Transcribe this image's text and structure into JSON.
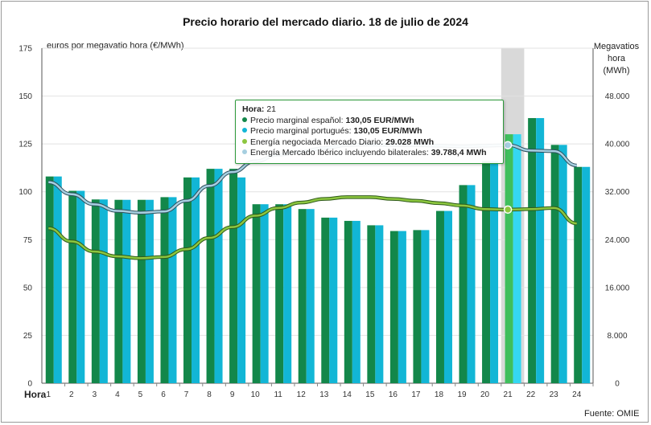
{
  "chart_data": {
    "type": "bar",
    "title": "Precio horario del mercado diario. 18 de julio de 2024",
    "x_axis_label": "Hora",
    "left_axis_label": "euros por megavatio hora (€/MWh)",
    "right_axis_label_lines": [
      "Megavatios",
      "hora",
      "(MWh)"
    ],
    "source": "Fuente: OMIE",
    "categories": [
      "1",
      "2",
      "3",
      "4",
      "5",
      "6",
      "7",
      "8",
      "9",
      "10",
      "11",
      "12",
      "13",
      "14",
      "15",
      "16",
      "17",
      "18",
      "19",
      "20",
      "21",
      "22",
      "23",
      "24"
    ],
    "ylim_left": [
      0,
      175
    ],
    "yticks_left": [
      "0",
      "25",
      "50",
      "75",
      "100",
      "125",
      "150",
      "175"
    ],
    "ylim_right": [
      0,
      56000
    ],
    "yticks_right": [
      "0",
      "8.000",
      "16.000",
      "24.000",
      "32.000",
      "40.000",
      "48.000"
    ],
    "highlighted_hour": "21",
    "series": [
      {
        "name": "Precio marginal español",
        "type": "bar",
        "axis": "left",
        "color": "#13874a",
        "values": [
          108,
          100.5,
          96,
          95.8,
          95.8,
          97.2,
          107.5,
          112,
          112,
          93.5,
          93.5,
          91,
          86.5,
          84.8,
          82.5,
          79.5,
          80,
          90,
          103.5,
          116,
          130.05,
          138.5,
          124.5,
          113
        ]
      },
      {
        "name": "Precio marginal portugués",
        "type": "bar",
        "axis": "left",
        "color": "#12b6d6",
        "values": [
          108,
          100.5,
          96,
          95.8,
          95.8,
          97.2,
          107.5,
          112,
          107.5,
          93.5,
          93.5,
          91,
          86.5,
          84.8,
          82.5,
          79.5,
          80,
          90,
          103.5,
          116,
          130.05,
          138.5,
          124.5,
          113
        ]
      },
      {
        "name": "Energía negociada Mercado Diario",
        "type": "line",
        "axis": "right",
        "color": "#8cc63f",
        "values": [
          25900,
          23700,
          22000,
          21200,
          20900,
          21100,
          22400,
          24300,
          26100,
          28000,
          29300,
          30200,
          30800,
          31100,
          31100,
          30800,
          30500,
          30100,
          29700,
          29100,
          29028,
          29100,
          29300,
          26700
        ]
      },
      {
        "name": "Energía Mercado Ibérico incluyendo bilaterales",
        "type": "line",
        "axis": "right",
        "color": "#a6cfe0",
        "values": [
          33600,
          31600,
          29900,
          28800,
          28500,
          28700,
          30500,
          33000,
          35300,
          37100,
          38200,
          38700,
          39300,
          39800,
          39900,
          39800,
          39800,
          39700,
          39600,
          39700,
          39788.4,
          38900,
          38800,
          36400
        ]
      }
    ],
    "legend": "tooltip",
    "grid": true
  },
  "tooltip": {
    "header_label": "Hora:",
    "header_value": "21",
    "rows": [
      {
        "label": "Precio marginal español:",
        "value": "130,05 EUR/MWh",
        "color": "#13874a"
      },
      {
        "label": "Precio marginal portugués:",
        "value": "130,05 EUR/MWh",
        "color": "#12b6d6"
      },
      {
        "label": "Energía negociada Mercado Diario:",
        "value": "29.028 MWh",
        "color": "#8cc63f"
      },
      {
        "label": "Energía Mercado Ibérico incluyendo bilaterales:",
        "value": "39.788,4 MWh",
        "color": "#a6cfe0"
      }
    ]
  }
}
